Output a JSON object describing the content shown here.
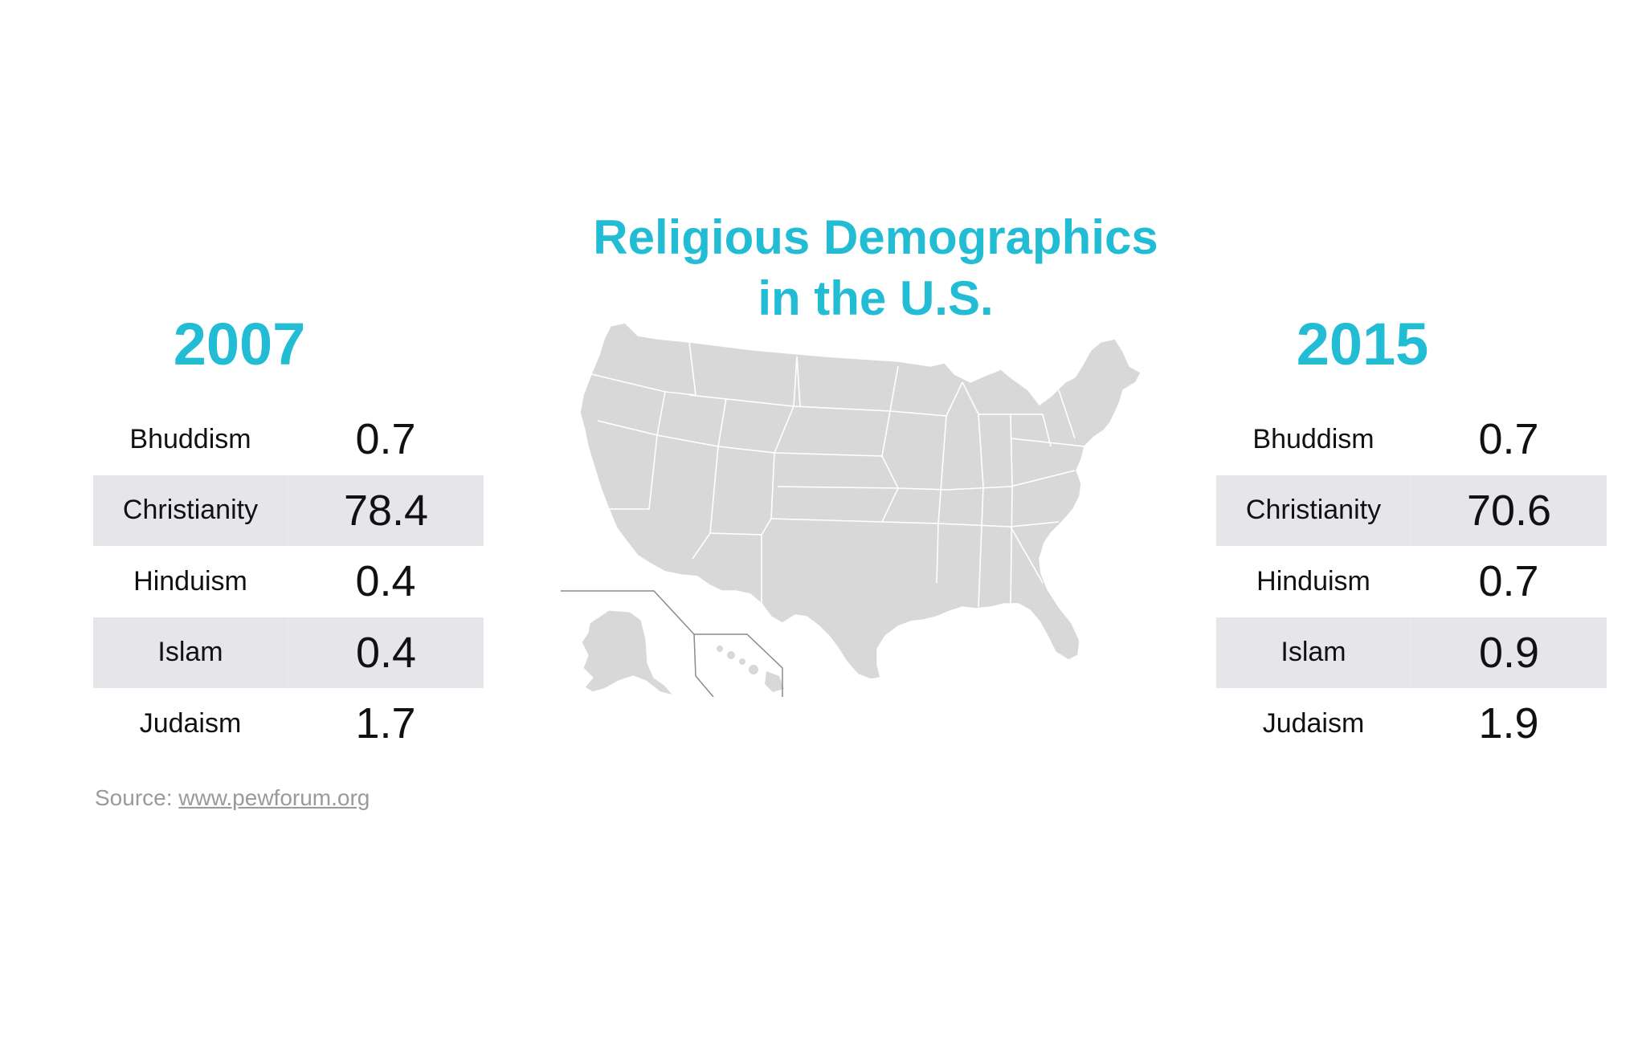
{
  "title": {
    "line1": "Religious Demographics",
    "line2": "in the U.S."
  },
  "left": {
    "year": "2007",
    "rows": [
      {
        "name": "Bhuddism",
        "value": "0.7"
      },
      {
        "name": "Christianity",
        "value": "78.4"
      },
      {
        "name": "Hinduism",
        "value": "0.4"
      },
      {
        "name": "Islam",
        "value": "0.4"
      },
      {
        "name": "Judaism",
        "value": "1.7"
      }
    ]
  },
  "right": {
    "year": "2015",
    "rows": [
      {
        "name": "Bhuddism",
        "value": "0.7"
      },
      {
        "name": "Christianity",
        "value": "70.6"
      },
      {
        "name": "Hinduism",
        "value": "0.7"
      },
      {
        "name": "Islam",
        "value": "0.9"
      },
      {
        "name": "Judaism",
        "value": "1.9"
      }
    ]
  },
  "source": {
    "label": "Source: ",
    "link": "www.pewforum.org"
  },
  "colors": {
    "accent": "#22bcd4",
    "map_fill": "#d8d8d8",
    "row_shade": "#e6e6ea",
    "source_text": "#9a9a9a"
  },
  "map": {
    "icon": "us-map-icon"
  }
}
